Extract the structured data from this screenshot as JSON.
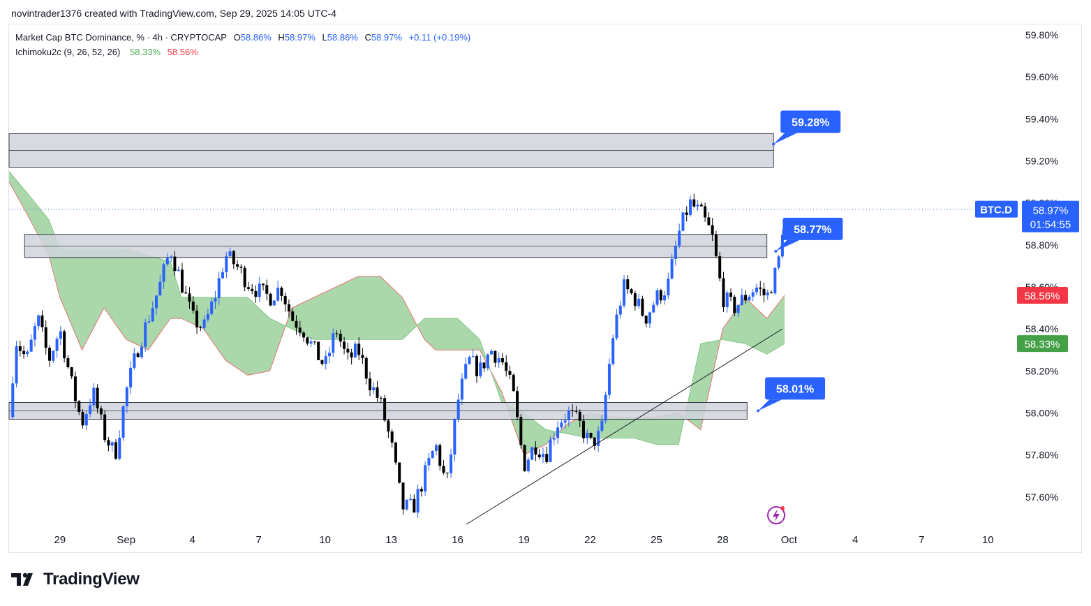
{
  "header": {
    "created_by": "novintrader1376 created with TradingView.com, Sep 29, 2025 14:05 UTC-4"
  },
  "legend": {
    "symbol_title": "Market Cap BTC Dominance, % · 4h · CRYPTOCAP",
    "o_label": "O",
    "o_value": "58.86%",
    "h_label": "H",
    "h_value": "58.97%",
    "l_label": "L",
    "l_value": "58.86%",
    "c_label": "C",
    "c_value": "58.97%",
    "change": "+0.11 (+0.19%)",
    "indicator_title": "Ichimoku2c (9, 26, 52, 26)",
    "indicator_value_1": "58.33%",
    "indicator_value_2": "58.56%"
  },
  "price_axis": {
    "symbol_tag": "BTC.D",
    "last_price": "58.97%",
    "countdown": "01:54:55",
    "span_b_label": "58.56%",
    "span_a_label": "58.33%"
  },
  "annotations": [
    "59.28%",
    "58.77%",
    "58.01%"
  ],
  "footer": {
    "brand": "TradingView"
  },
  "colors": {
    "up": "#2962ff",
    "down": "#000000",
    "cloud": "#a5d6a7",
    "cloud_edge": "#e57373",
    "zone_fill": "#d1d4dc",
    "callout": "#2962ff",
    "span_b": "#f23645",
    "span_a": "#43a047"
  },
  "chart_data": {
    "type": "candlestick",
    "timeframe": "4h",
    "y_ticks": [
      "57.60%",
      "57.80%",
      "58.00%",
      "58.20%",
      "58.40%",
      "58.60%",
      "58.80%",
      "59.00%",
      "59.20%",
      "59.40%",
      "59.60%",
      "59.80%"
    ],
    "x_ticks": [
      "29",
      "Sep",
      "4",
      "7",
      "10",
      "13",
      "16",
      "19",
      "22",
      "25",
      "28",
      "Oct",
      "4",
      "7",
      "10"
    ],
    "x_tick_days": [
      -3,
      0,
      3,
      6,
      9,
      12,
      15,
      18,
      21,
      24,
      27,
      30,
      33,
      36,
      39
    ],
    "ylim": [
      57.47,
      59.88
    ],
    "xlim_days": [
      -5.3,
      40.35
    ],
    "close_series": [
      {
        "day": -5.3,
        "close": 57.98
      },
      {
        "day": -5.0,
        "close": 58.35
      },
      {
        "day": -4.5,
        "close": 58.25
      },
      {
        "day": -4.0,
        "close": 58.45
      },
      {
        "day": -3.5,
        "close": 58.25
      },
      {
        "day": -3.0,
        "close": 58.4
      },
      {
        "day": -2.5,
        "close": 58.15
      },
      {
        "day": -2.0,
        "close": 57.95
      },
      {
        "day": -1.5,
        "close": 58.1
      },
      {
        "day": -1.0,
        "close": 57.9
      },
      {
        "day": -0.5,
        "close": 57.8
      },
      {
        "day": 0.0,
        "close": 58.1
      },
      {
        "day": 0.5,
        "close": 58.3
      },
      {
        "day": 1.0,
        "close": 58.45
      },
      {
        "day": 1.5,
        "close": 58.6
      },
      {
        "day": 2.0,
        "close": 58.78
      },
      {
        "day": 2.5,
        "close": 58.62
      },
      {
        "day": 3.0,
        "close": 58.45
      },
      {
        "day": 3.5,
        "close": 58.4
      },
      {
        "day": 4.0,
        "close": 58.55
      },
      {
        "day": 4.5,
        "close": 58.75
      },
      {
        "day": 5.0,
        "close": 58.7
      },
      {
        "day": 5.5,
        "close": 58.62
      },
      {
        "day": 6.0,
        "close": 58.58
      },
      {
        "day": 6.5,
        "close": 58.55
      },
      {
        "day": 7.0,
        "close": 58.6
      },
      {
        "day": 7.5,
        "close": 58.45
      },
      {
        "day": 8.0,
        "close": 58.4
      },
      {
        "day": 8.5,
        "close": 58.3
      },
      {
        "day": 9.0,
        "close": 58.22
      },
      {
        "day": 9.5,
        "close": 58.4
      },
      {
        "day": 10.0,
        "close": 58.25
      },
      {
        "day": 10.5,
        "close": 58.3
      },
      {
        "day": 11.0,
        "close": 58.15
      },
      {
        "day": 11.5,
        "close": 58.05
      },
      {
        "day": 12.0,
        "close": 57.85
      },
      {
        "day": 12.5,
        "close": 57.55
      },
      {
        "day": 13.0,
        "close": 57.55
      },
      {
        "day": 13.5,
        "close": 57.7
      },
      {
        "day": 14.0,
        "close": 57.85
      },
      {
        "day": 14.5,
        "close": 57.65
      },
      {
        "day": 15.0,
        "close": 58.05
      },
      {
        "day": 15.5,
        "close": 58.25
      },
      {
        "day": 16.0,
        "close": 58.2
      },
      {
        "day": 16.5,
        "close": 58.3
      },
      {
        "day": 17.0,
        "close": 58.25
      },
      {
        "day": 17.5,
        "close": 58.1
      },
      {
        "day": 18.0,
        "close": 57.75
      },
      {
        "day": 18.5,
        "close": 57.85
      },
      {
        "day": 19.0,
        "close": 57.8
      },
      {
        "day": 19.5,
        "close": 57.95
      },
      {
        "day": 20.0,
        "close": 58.0
      },
      {
        "day": 20.5,
        "close": 57.95
      },
      {
        "day": 21.0,
        "close": 57.85
      },
      {
        "day": 21.5,
        "close": 57.9
      },
      {
        "day": 22.0,
        "close": 58.35
      },
      {
        "day": 22.5,
        "close": 58.6
      },
      {
        "day": 23.0,
        "close": 58.55
      },
      {
        "day": 23.5,
        "close": 58.45
      },
      {
        "day": 24.0,
        "close": 58.55
      },
      {
        "day": 24.5,
        "close": 58.6
      },
      {
        "day": 25.0,
        "close": 58.85
      },
      {
        "day": 25.5,
        "close": 59.0
      },
      {
        "day": 26.0,
        "close": 58.95
      },
      {
        "day": 26.5,
        "close": 58.85
      },
      {
        "day": 27.0,
        "close": 58.55
      },
      {
        "day": 27.5,
        "close": 58.5
      },
      {
        "day": 28.0,
        "close": 58.55
      },
      {
        "day": 28.5,
        "close": 58.6
      },
      {
        "day": 29.0,
        "close": 58.55
      },
      {
        "day": 29.5,
        "close": 58.7
      },
      {
        "day": 29.8,
        "close": 58.97
      }
    ],
    "ichimoku_cloud": {
      "x_days": [
        -5.3,
        -4.5,
        -3.5,
        -3.0,
        -2.0,
        -1.0,
        0.0,
        1.0,
        2.0,
        2.5,
        3.5,
        4.5,
        5.5,
        6.5,
        7.5,
        8.5,
        9.5,
        10.5,
        11.5,
        12.5,
        13.5,
        14.0,
        15.0,
        16.0,
        17.0,
        18.0,
        19.0,
        20.0,
        21.0,
        22.0,
        23.0,
        24.0,
        25.0,
        26.0,
        27.0,
        28.0,
        29.0,
        29.8
      ],
      "span_a": [
        59.15,
        59.05,
        58.92,
        58.78,
        58.78,
        58.78,
        58.78,
        58.75,
        58.72,
        58.55,
        58.55,
        58.55,
        58.55,
        58.45,
        58.4,
        58.35,
        58.35,
        58.35,
        58.35,
        58.35,
        58.45,
        58.45,
        58.45,
        58.35,
        58.05,
        58.0,
        57.92,
        57.9,
        57.88,
        57.88,
        57.88,
        57.85,
        57.85,
        58.33,
        58.35,
        58.33,
        58.28,
        58.33
      ],
      "span_b": [
        59.1,
        58.95,
        58.75,
        58.55,
        58.3,
        58.5,
        58.35,
        58.3,
        58.45,
        58.45,
        58.4,
        58.25,
        58.18,
        58.2,
        58.5,
        58.55,
        58.6,
        58.65,
        58.65,
        58.55,
        58.35,
        58.3,
        58.3,
        58.3,
        58.1,
        57.8,
        57.85,
        57.95,
        58.0,
        57.98,
        57.98,
        57.98,
        58.0,
        57.92,
        58.4,
        58.55,
        58.45,
        58.56
      ]
    },
    "horizontal_zones": [
      {
        "top": 59.33,
        "bottom": 59.17,
        "x_start_day": -5.3,
        "x_end_day": 29.3
      },
      {
        "top": 58.85,
        "bottom": 58.74,
        "x_start_day": -4.6,
        "x_end_day": 29.0
      },
      {
        "top": 58.05,
        "bottom": 57.97,
        "x_start_day": -5.3,
        "x_end_day": 28.1
      }
    ],
    "trendline": {
      "start": {
        "day": 15.4,
        "price": 57.47
      },
      "end": {
        "day": 29.7,
        "price": 58.4
      }
    },
    "callouts": [
      {
        "text": "59.28%",
        "day": 29.3,
        "price": 59.28
      },
      {
        "text": "58.77%",
        "day": 29.4,
        "price": 58.77
      },
      {
        "text": "58.01%",
        "day": 28.6,
        "price": 58.01
      }
    ],
    "last_price": 58.97,
    "ichimoku_span_a_last": 58.33,
    "ichimoku_span_b_last": 58.56
  }
}
